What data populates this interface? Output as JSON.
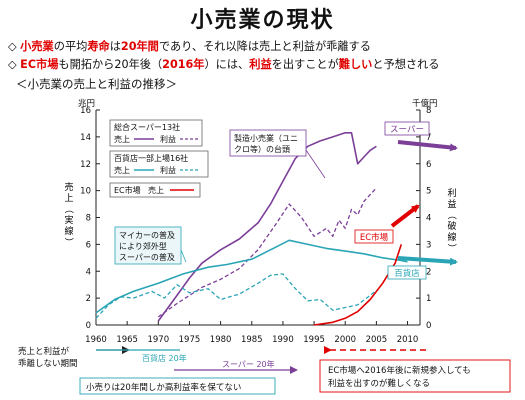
{
  "page": {
    "title": "小売業の現状",
    "bullets": [
      [
        {
          "t": "◇ ",
          "s": "n"
        },
        {
          "t": "小売業",
          "s": "r"
        },
        {
          "t": "の平均",
          "s": "n"
        },
        {
          "t": "寿命",
          "s": "r"
        },
        {
          "t": "は",
          "s": "n"
        },
        {
          "t": "20年間",
          "s": "r"
        },
        {
          "t": "であり、それ以降は売上と利益が乖離する",
          "s": "n"
        }
      ],
      [
        {
          "t": "◇ ",
          "s": "n"
        },
        {
          "t": "EC市場",
          "s": "r"
        },
        {
          "t": "も開拓から20年後（",
          "s": "n"
        },
        {
          "t": "2016年",
          "s": "r"
        },
        {
          "t": "）には、",
          "s": "n"
        },
        {
          "t": "利益",
          "s": "r"
        },
        {
          "t": "を出すことが",
          "s": "n"
        },
        {
          "t": "難しい",
          "s": "r"
        },
        {
          "t": "と予想される",
          "s": "n"
        }
      ]
    ],
    "subtitle": "＜小売業の売上と利益の推移＞"
  },
  "chart_data": {
    "type": "line",
    "left_unit": "兆円",
    "right_unit": "千億円",
    "ylabel_left": "売上（実線）",
    "ylabel_right": "利益（破線）",
    "xlim": [
      1960,
      2012
    ],
    "ylim_left": [
      0,
      16
    ],
    "ylim_right": [
      0,
      8
    ],
    "x_ticks": [
      1960,
      1965,
      1970,
      1975,
      1980,
      1985,
      1990,
      1995,
      2000,
      2005,
      2010
    ],
    "y_ticks_left": [
      0,
      2,
      4,
      6,
      8,
      10,
      12,
      14,
      16
    ],
    "y_ticks_right": [
      0,
      1,
      2,
      3,
      4,
      5,
      6,
      7,
      8
    ],
    "grid": false,
    "legend": {
      "position": "top-left",
      "groups": [
        {
          "title": "総合スーパー13社",
          "items": [
            {
              "label": "売上",
              "style": "solid",
              "color": "#7b3f98"
            },
            {
              "label": "利益",
              "style": "dashed",
              "color": "#7b3f98"
            }
          ]
        },
        {
          "title": "百貨店一部上場16社",
          "items": [
            {
              "label": "売上",
              "style": "solid",
              "color": "#2aa5b5"
            },
            {
              "label": "利益",
              "style": "dashed",
              "color": "#2aa5b5"
            }
          ]
        },
        {
          "title": "EC市場",
          "items": [
            {
              "label": "売上",
              "style": "solid",
              "color": "#e00000"
            }
          ]
        }
      ]
    },
    "series": [
      {
        "key": "super_sales",
        "axis": "left",
        "style": "solid",
        "color": "#7b3f98",
        "x": [
          1970,
          1973,
          1975,
          1977,
          1980,
          1983,
          1986,
          1988,
          1990,
          1992,
          1994,
          1996,
          1998,
          2000,
          2001,
          2002,
          2003,
          2004,
          2005
        ],
        "y": [
          0.3,
          2.2,
          3.5,
          4.6,
          5.6,
          6.4,
          7.6,
          9.0,
          10.7,
          12.4,
          13.3,
          13.7,
          14.0,
          14.3,
          14.3,
          12.0,
          12.5,
          13.0,
          13.3
        ]
      },
      {
        "key": "super_profit",
        "axis": "right",
        "style": "dashed",
        "color": "#7b3f98",
        "x": [
          1970,
          1973,
          1975,
          1977,
          1980,
          1983,
          1986,
          1989,
          1991,
          1993,
          1995,
          1997,
          1998,
          1999,
          2000,
          2001,
          2002,
          2003,
          2005
        ],
        "y": [
          0.3,
          0.8,
          1.1,
          1.4,
          1.7,
          2.1,
          2.8,
          3.8,
          4.5,
          4.0,
          3.3,
          3.6,
          3.3,
          3.9,
          3.6,
          4.3,
          4.1,
          4.6,
          5.1
        ]
      },
      {
        "key": "dept_sales",
        "axis": "left",
        "style": "solid",
        "color": "#2aa5b5",
        "x": [
          1960,
          1963,
          1966,
          1970,
          1974,
          1978,
          1981,
          1985,
          1988,
          1991,
          1994,
          1997,
          2000,
          2003,
          2006,
          2009,
          2010
        ],
        "y": [
          0.9,
          1.9,
          2.5,
          3.1,
          3.8,
          4.3,
          4.5,
          4.9,
          5.6,
          6.3,
          6.0,
          5.7,
          5.5,
          5.3,
          5.0,
          4.8,
          4.7
        ]
      },
      {
        "key": "dept_profit",
        "axis": "right",
        "style": "dashed",
        "color": "#2aa5b5",
        "x": [
          1960,
          1962,
          1964,
          1966,
          1969,
          1971,
          1973,
          1975,
          1978,
          1980,
          1983,
          1986,
          1988,
          1990,
          1992,
          1994,
          1996,
          1998,
          2000,
          2002,
          2004,
          2005
        ],
        "y": [
          0.25,
          0.75,
          1.05,
          1.0,
          1.25,
          1.0,
          1.5,
          1.2,
          1.35,
          0.95,
          1.15,
          1.55,
          1.85,
          1.9,
          1.35,
          0.9,
          0.95,
          0.55,
          0.65,
          0.75,
          1.1,
          1.3
        ]
      },
      {
        "key": "ec_sales",
        "axis": "left",
        "style": "solid",
        "color": "#e00000",
        "x": [
          1995,
          1998,
          2000,
          2002,
          2004,
          2006,
          2008,
          2009
        ],
        "y": [
          0.0,
          0.2,
          0.5,
          1.0,
          1.9,
          3.1,
          4.6,
          6.0
        ]
      }
    ],
    "annotations": [
      {
        "text": "スーパー",
        "color": "#7b3f98"
      },
      {
        "text": "EC市場",
        "color": "#e00000"
      },
      {
        "text": "百貨店",
        "color": "#2aa5b5"
      },
      {
        "lines": [
          "製造小売業（ユニ",
          "クロ等）の台頭"
        ]
      },
      {
        "lines": [
          "マイカーの普及",
          "により郊外型",
          "スーパーの普及"
        ]
      }
    ],
    "notes": {
      "left": [
        "売上と利益が",
        "乖離しない期間"
      ],
      "dept_span": "百貨店 20年",
      "super_span": "スーパー 20年",
      "bottom_box": "小売りは20年間しか高利益率を保てない",
      "ec_box": [
        "EC市場へ2016年後に新規参入しても",
        "利益を出すのが難しくなる"
      ]
    }
  }
}
